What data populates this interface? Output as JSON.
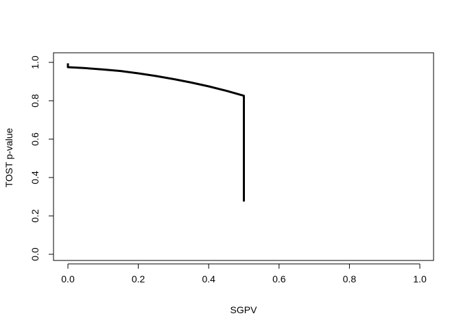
{
  "chart_data": {
    "type": "line",
    "title": "",
    "xlabel": "SGPV",
    "ylabel": "TOST p-value",
    "xlim": [
      0,
      1
    ],
    "ylim": [
      0,
      1
    ],
    "x_ticks": [
      0.0,
      0.2,
      0.4,
      0.6,
      0.8,
      1.0
    ],
    "y_ticks": [
      0.0,
      0.2,
      0.4,
      0.6,
      0.8,
      1.0
    ],
    "x_tick_labels": [
      "0.0",
      "0.2",
      "0.4",
      "0.6",
      "0.8",
      "1.0"
    ],
    "y_tick_labels": [
      "0.0",
      "0.2",
      "0.4",
      "0.6",
      "0.8",
      "1.0"
    ],
    "grid": false,
    "legend": "none",
    "line_color": "#000000",
    "series": [
      {
        "x": [
          0.0,
          0.0,
          0.0,
          0.05,
          0.1,
          0.15,
          0.2,
          0.25,
          0.3,
          0.35,
          0.4,
          0.45,
          0.5,
          0.5
        ],
        "y": [
          0.995,
          0.975,
          0.975,
          0.97,
          0.963,
          0.955,
          0.943,
          0.929,
          0.913,
          0.895,
          0.875,
          0.852,
          0.826,
          0.275
        ]
      }
    ]
  }
}
